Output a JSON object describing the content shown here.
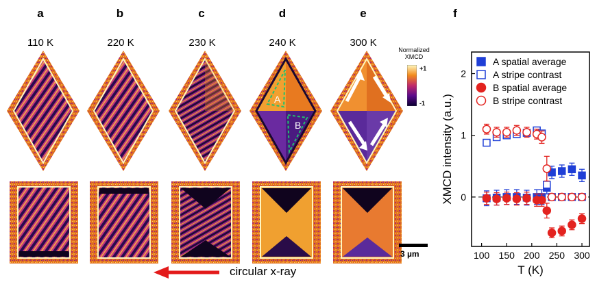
{
  "panels": [
    {
      "letter": "a",
      "temp": "110 K"
    },
    {
      "letter": "b",
      "temp": "220 K"
    },
    {
      "letter": "c",
      "temp": "230 K"
    },
    {
      "letter": "d",
      "temp": "240 K"
    },
    {
      "letter": "e",
      "temp": "300 K"
    }
  ],
  "panel_f_letter": "f",
  "colorbar": {
    "title_line1": "Normalized",
    "title_line2": "XMCD",
    "max_label": "+1",
    "min_label": "-1"
  },
  "region_labels": {
    "a": "A",
    "b": "B"
  },
  "scalebar_label": "3 µm",
  "xray_label": "circular x-ray",
  "colors": {
    "blue": "#1f3fd6",
    "red": "#e3231f",
    "arrow": "#e31b1b"
  },
  "chart_data": {
    "type": "scatter",
    "xlabel": "T (K)",
    "ylabel": "XMCD intensity (a.u.)",
    "xlim": [
      80,
      315
    ],
    "ylim": [
      -0.8,
      2.35
    ],
    "xticks": [
      100,
      150,
      200,
      250,
      300
    ],
    "yticks": [
      0,
      1,
      2
    ],
    "legend_position": "top-right",
    "series": [
      {
        "name": "A spatial average",
        "marker": "square",
        "filled": true,
        "color": "#1f3fd6",
        "x": [
          110,
          130,
          150,
          170,
          190,
          210,
          220,
          230,
          240,
          260,
          280,
          300
        ],
        "y": [
          -0.02,
          -0.01,
          0.0,
          0.0,
          -0.01,
          0.0,
          0.0,
          0.15,
          0.4,
          0.42,
          0.45,
          0.35
        ],
        "err": [
          0.12,
          0.12,
          0.12,
          0.12,
          0.12,
          0.12,
          0.12,
          0.1,
          0.1,
          0.1,
          0.1,
          0.1
        ]
      },
      {
        "name": "A stripe contrast",
        "marker": "square",
        "filled": false,
        "color": "#1f3fd6",
        "x": [
          110,
          130,
          150,
          170,
          190,
          210,
          220,
          230,
          240,
          260,
          280,
          300
        ],
        "y": [
          0.88,
          0.97,
          1.0,
          1.02,
          1.04,
          1.08,
          1.03,
          0.2,
          0.0,
          0.0,
          0.0,
          0.0
        ],
        "err": [
          0.05,
          0.05,
          0.05,
          0.05,
          0.05,
          0.05,
          0.05,
          0.05,
          0.05,
          0.05,
          0.05,
          0.05
        ]
      },
      {
        "name": "B spatial average",
        "marker": "circle",
        "filled": true,
        "color": "#e3231f",
        "x": [
          110,
          130,
          150,
          170,
          190,
          210,
          220,
          230,
          240,
          260,
          280,
          300
        ],
        "y": [
          -0.02,
          -0.03,
          -0.02,
          -0.03,
          -0.02,
          -0.05,
          -0.05,
          -0.22,
          -0.58,
          -0.55,
          -0.45,
          -0.35
        ],
        "err": [
          0.1,
          0.1,
          0.1,
          0.1,
          0.1,
          0.1,
          0.1,
          0.12,
          0.08,
          0.08,
          0.08,
          0.08
        ]
      },
      {
        "name": "B stripe contrast",
        "marker": "circle",
        "filled": false,
        "color": "#e3231f",
        "x": [
          110,
          130,
          150,
          170,
          190,
          210,
          220,
          230,
          240,
          260,
          280,
          300
        ],
        "y": [
          1.1,
          1.05,
          1.05,
          1.08,
          1.05,
          1.02,
          0.97,
          0.46,
          0.0,
          0.0,
          0.0,
          0.0
        ],
        "err": [
          0.08,
          0.08,
          0.08,
          0.08,
          0.08,
          0.08,
          0.1,
          0.2,
          0.05,
          0.05,
          0.05,
          0.05
        ]
      }
    ]
  }
}
